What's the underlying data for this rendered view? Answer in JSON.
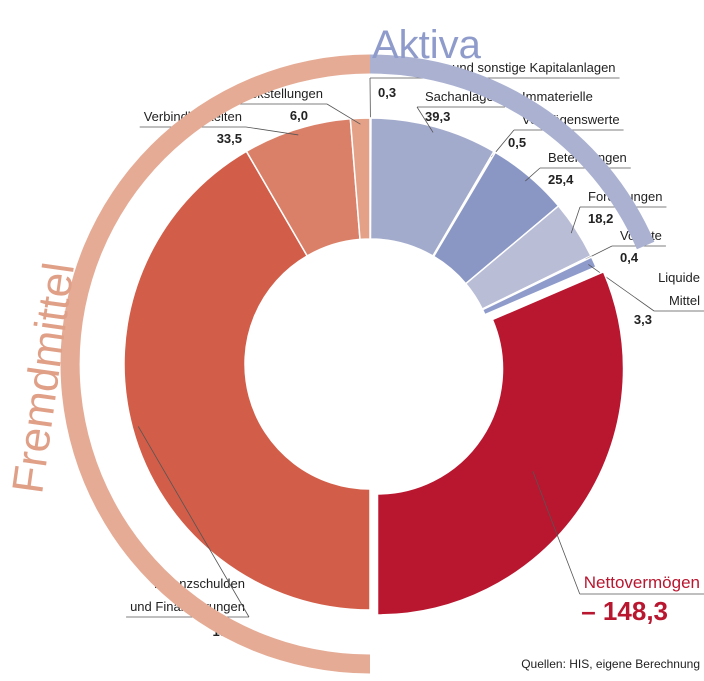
{
  "chart_data": {
    "type": "donut",
    "groups": [
      {
        "name": "Aktiva",
        "color": "#aab1d1"
      },
      {
        "name": "Fremdmittel",
        "color": "#e5ab95"
      }
    ],
    "series": [
      {
        "name": [
          "Wertpapiere und sonstige Kapitalanlagen"
        ],
        "value": 0.3,
        "value_label": "0,3",
        "color": "#2f5fa8",
        "group": 0
      },
      {
        "name": [
          "Sachanlagen"
        ],
        "value": 39.3,
        "value_label": "39,3",
        "color": "#a3abcc",
        "group": 0
      },
      {
        "name": [
          "Immaterielle",
          "Vermögenswerte"
        ],
        "value": 0.5,
        "value_label": "0,5",
        "color": "#4a6fae",
        "group": 0
      },
      {
        "name": [
          "Beteiligungen"
        ],
        "value": 25.4,
        "value_label": "25,4",
        "color": "#8a97c4",
        "group": 0
      },
      {
        "name": [
          "Forderungen"
        ],
        "value": 18.2,
        "value_label": "18,2",
        "color": "#b9bdd6",
        "group": 0
      },
      {
        "name": [
          "Vorräte"
        ],
        "value": 0.4,
        "value_label": "0,4",
        "color": "#3b6fb0",
        "group": 0
      },
      {
        "name": [
          "Liquide",
          "Mittel"
        ],
        "value": 3.3,
        "value_label": "3,3",
        "color": "#8f9ccb",
        "group": 0
      },
      {
        "name": [
          "Nettovermögen"
        ],
        "value": -148.3,
        "value_label": "– 148,3",
        "color": "#b9162f",
        "exploded": true
      },
      {
        "name": [
          "Finanzschulden",
          "und Finanzierungen"
        ],
        "value": 196.2,
        "value_label": "196,2",
        "color": "#d25d48",
        "group": 1
      },
      {
        "name": [
          "Verbindlichkeiten"
        ],
        "value": 33.5,
        "value_label": "33,5",
        "color": "#db8068",
        "group": 1
      },
      {
        "name": [
          "Rückstellungen"
        ],
        "value": 6.0,
        "value_label": "6,0",
        "color": "#e5a088",
        "group": 1
      }
    ],
    "source": "Quellen: HIS, eigene Berechnung"
  }
}
